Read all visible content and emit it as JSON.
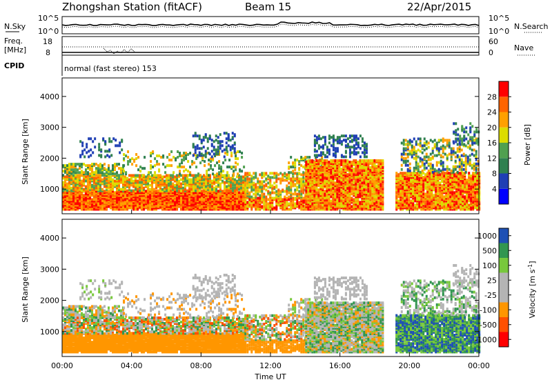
{
  "header": {
    "station": "Zhongshan Station (fitACF)",
    "beam": "Beam 15",
    "date": "22/Apr/2015"
  },
  "top_panels": {
    "nsky_label": "N.Sky",
    "nsearch_label": "N.Search",
    "nsky_ticks": [
      "10^5",
      "10^0"
    ],
    "nsky_right_ticks": [
      "10^5",
      "10^0"
    ],
    "freq_label_1": "Freq.",
    "freq_label_2": "[MHz]",
    "freq_ticks": [
      "18",
      "8"
    ],
    "nave_label": "Nave",
    "nave_ticks": [
      "60",
      "0"
    ],
    "cpid_label": "CPID",
    "cpid_text": "normal (fast stereo) 153"
  },
  "colors": {
    "power_scale": [
      "#0000ff",
      "#1f3fb4",
      "#2f8050",
      "#50a050",
      "#dcdc00",
      "#ffa000",
      "#ff6400",
      "#ff0000"
    ],
    "velocity_scale": [
      "#ff0000",
      "#ff5000",
      "#ff9600",
      "#b4b4b4",
      "#b4b4b4",
      "#78c83c",
      "#329650",
      "#1e50b4"
    ]
  },
  "chart_data": [
    {
      "type": "heatmap",
      "panel": "power",
      "ylabel": "Slant Range [km]",
      "xlabel": "",
      "x_ticks": [
        "00:00",
        "04:00",
        "08:00",
        "12:00",
        "16:00",
        "20:00",
        "00:00"
      ],
      "y_ticks": [
        "1000",
        "2000",
        "3000",
        "4000"
      ],
      "ylim": [
        200,
        4600
      ],
      "xlim_hours": [
        0,
        24
      ],
      "colorbar_label": "Power [dB]",
      "colorbar_ticks": [
        "4",
        "8",
        "12",
        "16",
        "20",
        "24",
        "28"
      ],
      "colorbar_range": [
        0,
        32
      ]
    },
    {
      "type": "heatmap",
      "panel": "velocity",
      "ylabel": "Slant Range [km]",
      "xlabel": "Time UT",
      "x_ticks": [
        "00:00",
        "04:00",
        "08:00",
        "12:00",
        "16:00",
        "20:00",
        "00:00"
      ],
      "y_ticks": [
        "1000",
        "2000",
        "3000",
        "4000"
      ],
      "ylim": [
        200,
        4600
      ],
      "xlim_hours": [
        0,
        24
      ],
      "colorbar_label": "Velocity [m s^-1]",
      "colorbar_ticks": [
        "-1000",
        "-500",
        "-100",
        "-25",
        "25",
        "100",
        "500",
        "1000"
      ]
    }
  ]
}
